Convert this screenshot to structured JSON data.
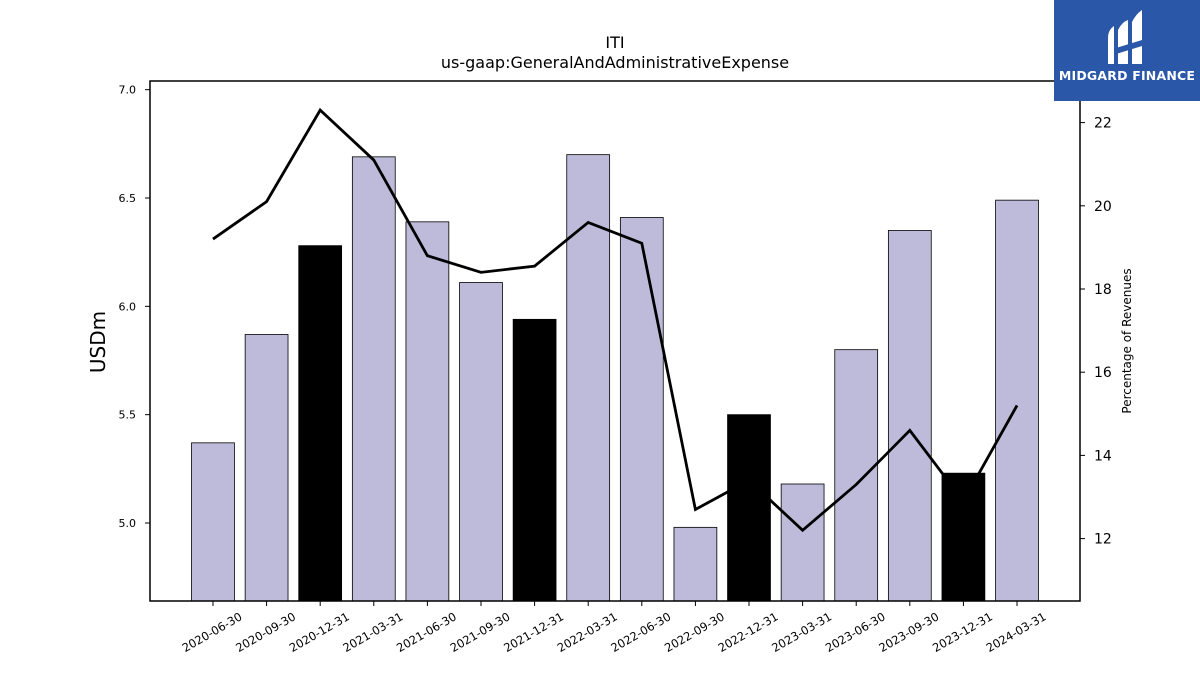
{
  "chart_data": {
    "type": "bar+line",
    "title": "ITI",
    "subtitle": "us-gaap:GeneralAndAdministrativeExpense",
    "ylabel_left": "USDm",
    "ylabel_right": "Percentage of Revenues",
    "categories": [
      "2020-06-30",
      "2020-09-30",
      "2020-12-31",
      "2021-03-31",
      "2021-06-30",
      "2021-09-30",
      "2021-12-31",
      "2022-03-31",
      "2022-06-30",
      "2022-09-30",
      "2022-12-31",
      "2023-03-31",
      "2023-06-30",
      "2023-09-30",
      "2023-12-31",
      "2024-03-31"
    ],
    "bars": {
      "values": [
        5.37,
        5.87,
        6.28,
        6.69,
        6.39,
        6.11,
        5.94,
        6.7,
        6.41,
        4.98,
        5.5,
        5.18,
        5.8,
        6.35,
        5.23,
        6.49
      ],
      "highlight": [
        false,
        false,
        true,
        false,
        false,
        false,
        true,
        false,
        false,
        false,
        true,
        false,
        false,
        false,
        true,
        false
      ],
      "color": "#bebbda",
      "highlight_color": "#000000"
    },
    "line": {
      "values": [
        19.2,
        20.1,
        22.3,
        21.1,
        18.8,
        18.4,
        18.55,
        19.6,
        19.1,
        12.7,
        13.4,
        12.2,
        13.3,
        14.6,
        12.9,
        15.2
      ],
      "color": "#000000"
    },
    "y_left": {
      "ylim": [
        4.64,
        7.04
      ],
      "ticks": [
        "5.0",
        "5.5",
        "6.0",
        "6.5",
        "7.0"
      ]
    },
    "y_right": {
      "ylim": [
        10.5,
        23.0
      ],
      "ticks": [
        "12",
        "14",
        "16",
        "18",
        "20",
        "22"
      ]
    },
    "grid": false,
    "legend": "none"
  },
  "logo": {
    "text": "MIDGARD FINANCE"
  }
}
